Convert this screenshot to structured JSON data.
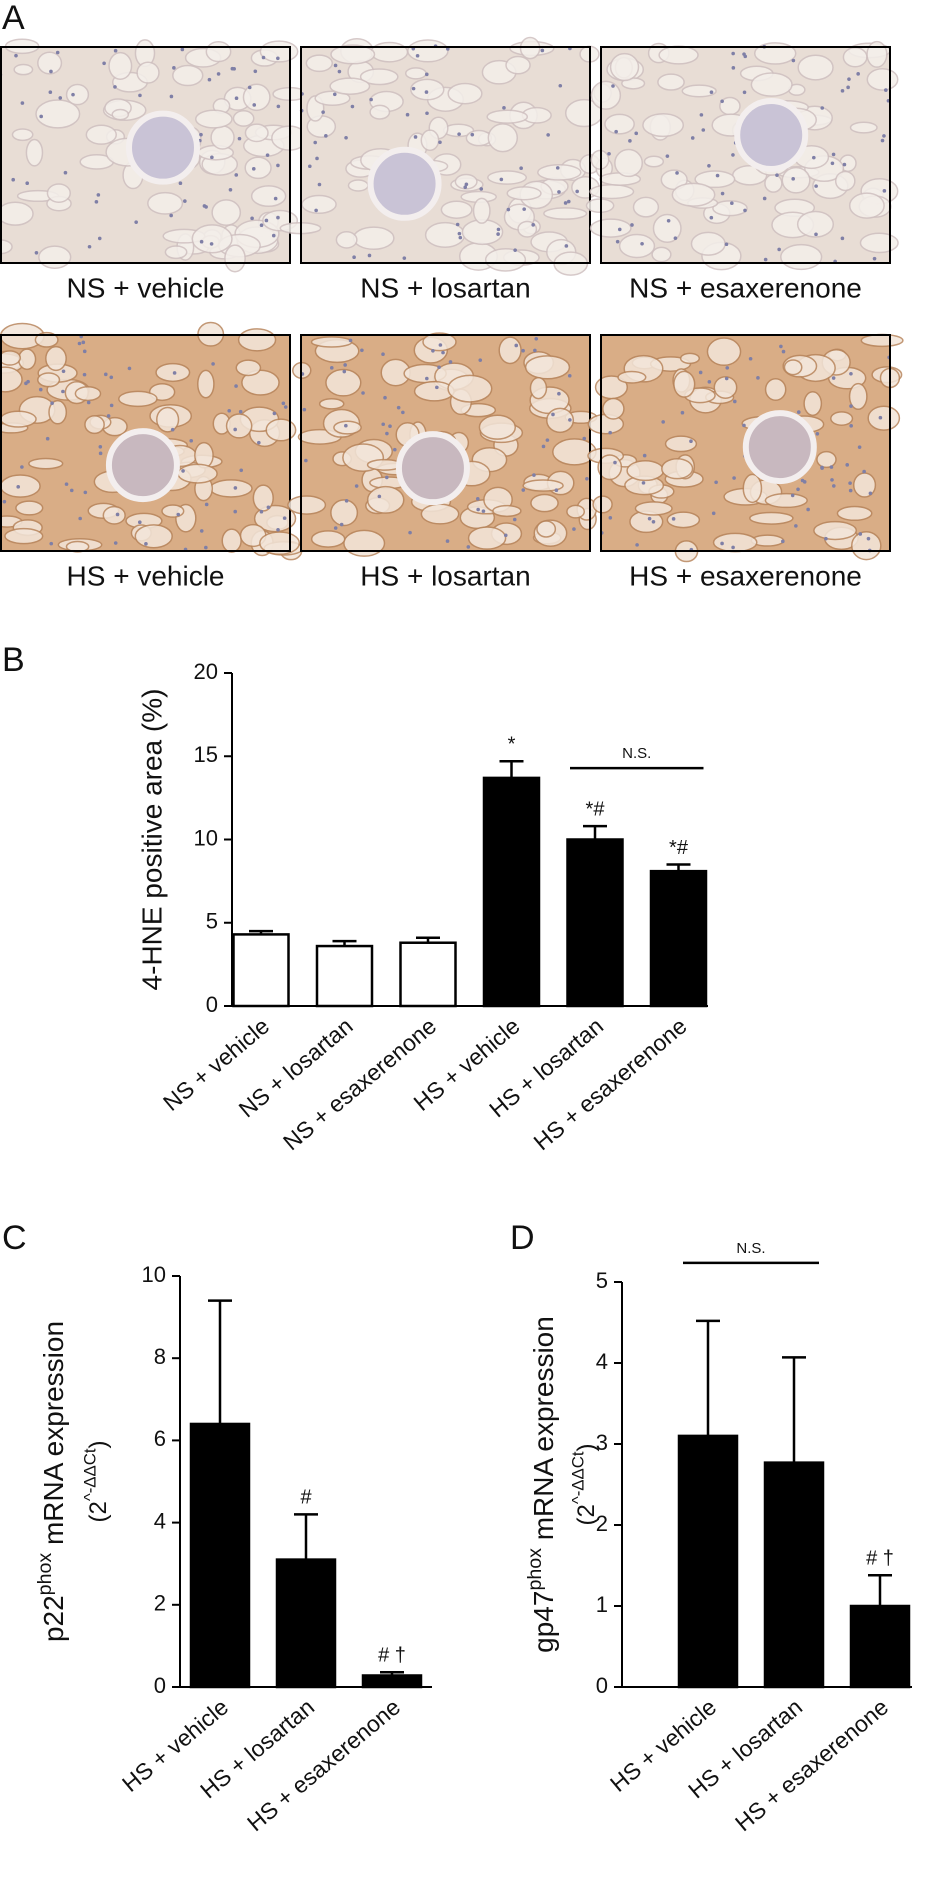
{
  "panel_a": {
    "label": "A",
    "captions": [
      "NS + vehicle",
      "NS + losartan",
      "NS + esaxerenone",
      "HS + vehicle",
      "HS + losartan",
      "HS + esaxerenone"
    ]
  },
  "chart_data": [
    {
      "type": "bar",
      "panel": "B",
      "ylabel": "4-HNE positive area (%)",
      "categories": [
        "NS + vehicle",
        "NS + losartan",
        "NS + esaxerenone",
        "HS + vehicle",
        "HS + losartan",
        "HS + esaxerenone"
      ],
      "values": [
        4.3,
        3.6,
        3.8,
        13.7,
        10.0,
        8.1
      ],
      "errors": [
        0.2,
        0.3,
        0.3,
        1.0,
        0.8,
        0.4
      ],
      "colors": [
        "#ffffff",
        "#ffffff",
        "#ffffff",
        "#000000",
        "#000000",
        "#000000"
      ],
      "bar_labels": [
        null,
        null,
        null,
        "*",
        "*#",
        "*#"
      ],
      "brackets": [
        {
          "label": "N.S.",
          "between": [
            4,
            5
          ]
        }
      ],
      "ylim": [
        0,
        20
      ],
      "yticks": [
        0,
        5,
        10,
        15,
        20
      ]
    },
    {
      "type": "bar",
      "panel": "C",
      "ylabel_parts": [
        "p22",
        "phox",
        " mRNA expression"
      ],
      "ylabel2_parts": [
        "(2",
        "^-ΔΔCt",
        ")"
      ],
      "categories": [
        "HS + vehicle",
        "HS + losartan",
        "HS + esaxerenone"
      ],
      "values": [
        6.4,
        3.1,
        0.28
      ],
      "errors": [
        3.0,
        1.1,
        0.08
      ],
      "colors": [
        "#000000",
        "#000000",
        "#000000"
      ],
      "bar_labels": [
        null,
        "#",
        "# †"
      ],
      "ylim": [
        0,
        10
      ],
      "yticks": [
        0,
        2,
        4,
        6,
        8,
        10
      ]
    },
    {
      "type": "bar",
      "panel": "D",
      "ylabel_parts": [
        "gp47",
        "phox",
        " mRNA expression"
      ],
      "ylabel2_parts": [
        "(2",
        "^-ΔΔCt",
        ")"
      ],
      "categories": [
        "HS + vehicle",
        "HS + losartan",
        "HS + esaxerenone"
      ],
      "values": [
        3.1,
        2.77,
        1.0
      ],
      "errors": [
        1.42,
        1.3,
        0.38
      ],
      "colors": [
        "#000000",
        "#000000",
        "#000000"
      ],
      "bar_labels": [
        null,
        null,
        "# †"
      ],
      "brackets": [
        {
          "label": "N.S.",
          "between": [
            0,
            1
          ]
        }
      ],
      "ylim": [
        0,
        5
      ],
      "yticks": [
        0,
        1,
        2,
        3,
        4,
        5
      ]
    }
  ]
}
